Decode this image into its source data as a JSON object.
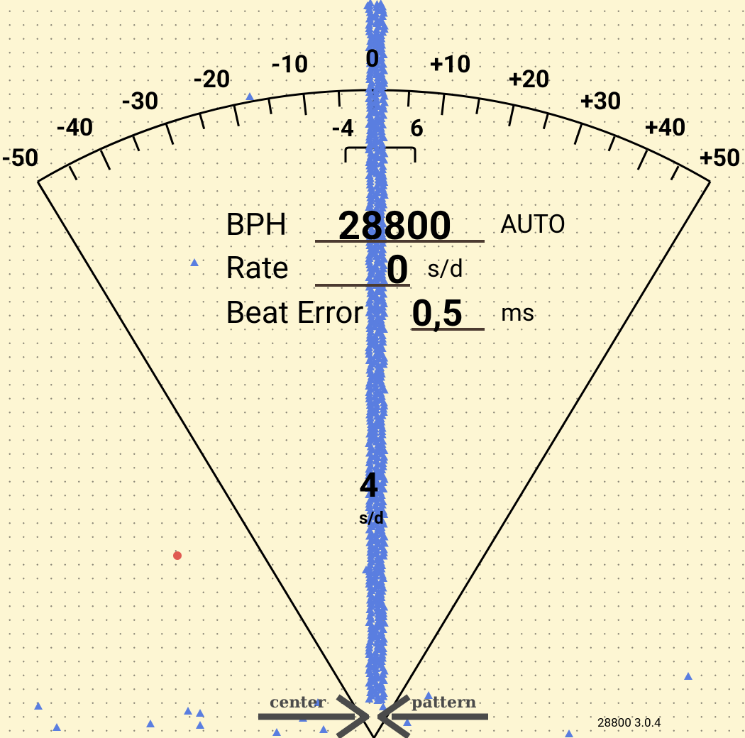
{
  "scale": {
    "ticks_major_labels": [
      {
        "value": "-50"
      },
      {
        "value": "-40"
      },
      {
        "value": "-30"
      },
      {
        "value": "-20"
      },
      {
        "value": "-10"
      },
      {
        "value": "0"
      },
      {
        "value": "+10"
      },
      {
        "value": "+20"
      },
      {
        "value": "+30"
      },
      {
        "value": "+40"
      },
      {
        "value": "+50"
      }
    ],
    "tolerance_min": "-4",
    "tolerance_max": "6"
  },
  "readouts": {
    "bph_label": "BPH",
    "bph_value": "28800",
    "bph_mode": "AUTO",
    "rate_label": "Rate",
    "rate_value": "0",
    "rate_unit": "s/d",
    "beat_error_label": "Beat Error",
    "beat_error_value": "0,5",
    "beat_error_unit": "ms"
  },
  "needle_readout": {
    "value": "4",
    "unit": "s/d"
  },
  "buttons": {
    "center_label": "center",
    "pattern_label": "pattern"
  },
  "footer": {
    "version": "28800 3.0.4"
  },
  "colors": {
    "background": "#fdf6d3",
    "points": "#5a7ee0",
    "red_dot": "#e05a52",
    "underline": "#4b3a30"
  }
}
